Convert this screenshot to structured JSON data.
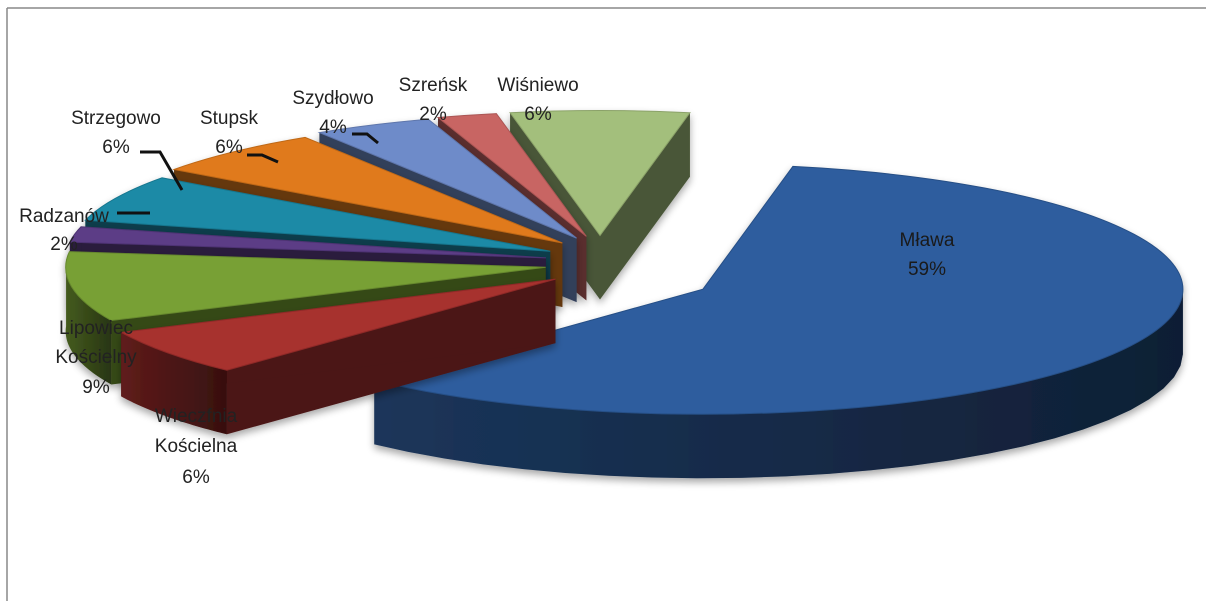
{
  "chart_data": {
    "type": "pie",
    "style": "3d-exploded",
    "title": "",
    "legend": "none",
    "slices": [
      {
        "name": "Mława",
        "value": 59,
        "label": "59%",
        "color": "#2e5d9e"
      },
      {
        "name": "Wieczfnia Kościelna",
        "value": 6,
        "label": "6%",
        "color": "#a7302f"
      },
      {
        "name": "Lipowiec Kościelny",
        "value": 9,
        "label": "9%",
        "color": "#78a035"
      },
      {
        "name": "Radzanów",
        "value": 2,
        "label": "2%",
        "color": "#5b3c86"
      },
      {
        "name": "Strzegowo",
        "value": 6,
        "label": "6%",
        "color": "#1b8aa6"
      },
      {
        "name": "Stupsk",
        "value": 6,
        "label": "6%",
        "color": "#e07a1c"
      },
      {
        "name": "Szydłowo",
        "value": 4,
        "label": "4%",
        "color": "#6e8bc9"
      },
      {
        "name": "Szreńsk",
        "value": 2,
        "label": "2%",
        "color": "#c86563"
      },
      {
        "name": "Wiśniewo",
        "value": 6,
        "label": "6%",
        "color": "#a3bf7b"
      }
    ]
  },
  "labels": {
    "mlawa": {
      "name": "Mława",
      "pct": "59%"
    },
    "wieczfnia": {
      "line1": "Wieczfnia",
      "line2": "Kościelna",
      "pct": "6%"
    },
    "lipowiec": {
      "line1": "Lipowiec",
      "line2": "Kościelny",
      "pct": "9%"
    },
    "radzanow": {
      "name": "Radzanów",
      "pct": "2%"
    },
    "strzegowo": {
      "name": "Strzegowo",
      "pct": "6%"
    },
    "stupsk": {
      "name": "Stupsk",
      "pct": "6%"
    },
    "szydlowo": {
      "name": "Szydłowo",
      "pct": "4%"
    },
    "szrensk": {
      "name": "Szreńsk",
      "pct": "2%"
    },
    "wisniewo": {
      "name": "Wiśniewo",
      "pct": "6%"
    }
  }
}
